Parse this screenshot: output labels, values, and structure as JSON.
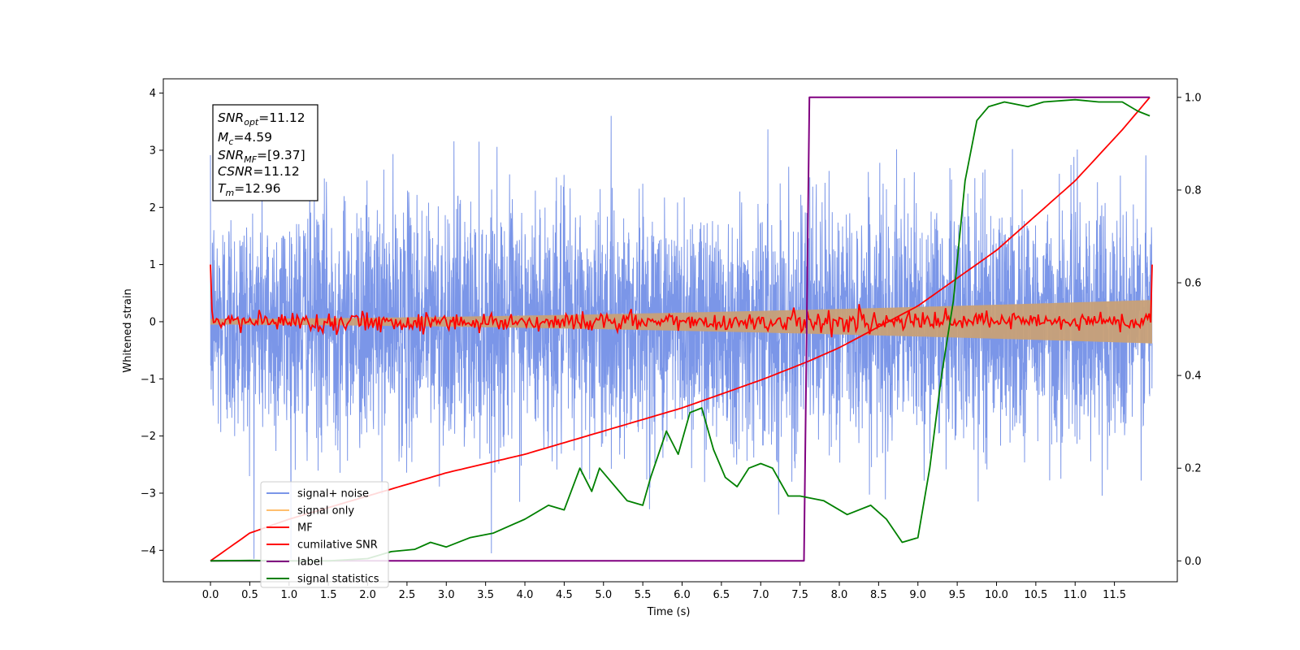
{
  "chart_data": {
    "type": "line",
    "xlabel": "Time (s)",
    "ylabel": "Whitened strain",
    "xlim": [
      -0.6,
      12.3
    ],
    "ylim": [
      -4.55,
      4.25
    ],
    "y2lim": [
      -0.045,
      1.04
    ],
    "x_ticks": [
      "0.0",
      "0.5",
      "1.0",
      "1.5",
      "2.0",
      "2.5",
      "3.0",
      "3.5",
      "4.0",
      "4.5",
      "5.0",
      "5.5",
      "6.0",
      "6.5",
      "7.0",
      "7.5",
      "8.0",
      "8.5",
      "9.0",
      "9.5",
      "10.0",
      "10.5",
      "11.0",
      "11.5"
    ],
    "y_ticks": [
      "4",
      "3",
      "2",
      "1",
      "0",
      "−1",
      "−2",
      "−3",
      "−4"
    ],
    "y2_ticks": [
      "1.0",
      "0.8",
      "0.6",
      "0.4",
      "0.2",
      "0.0"
    ],
    "info_box": {
      "snr_opt": {
        "base": "SNR",
        "sub": "opt",
        "value": "=11.12"
      },
      "mc": {
        "base": "M",
        "sub": "c",
        "value": "=4.59"
      },
      "snr_mf": {
        "base": "SNR",
        "sub": "MF",
        "value": "=[9.37]"
      },
      "csnr": {
        "base": "CSNR",
        "sub": "",
        "value": "=11.12"
      },
      "tm": {
        "base": "T",
        "sub": "m",
        "value": "=12.96"
      }
    },
    "legend": {
      "placement": "lower-left",
      "entries": [
        {
          "key": "signal_noise",
          "label": "signal+ noise",
          "color": "#7b96e8"
        },
        {
          "key": "signal_only",
          "label": "signal only",
          "color": "#ffbf6e"
        },
        {
          "key": "mf",
          "label": "MF",
          "color": "#ff0000"
        },
        {
          "key": "cum_snr",
          "label": "cumilative SNR",
          "color": "#ff0000"
        },
        {
          "key": "label",
          "label": "label",
          "color": "#800080"
        },
        {
          "key": "signal_stats",
          "label": "signal statistics",
          "color": "#008000"
        }
      ]
    },
    "series": [
      {
        "key": "signal_noise",
        "axis": "left",
        "description_range": [
          -4.15,
          3.85
        ],
        "color": "#7b96e8"
      },
      {
        "key": "signal_only",
        "axis": "left",
        "envelope_start": 0.05,
        "envelope_end": 0.38,
        "color": "#c8a077"
      },
      {
        "key": "mf",
        "axis": "left",
        "color": "#ff0000"
      },
      {
        "key": "cum_snr",
        "axis": "right",
        "x": [
          0.0,
          0.5,
          1.0,
          2.0,
          3.0,
          4.0,
          5.0,
          6.0,
          7.0,
          7.6,
          8.0,
          9.0,
          10.0,
          11.0,
          11.6,
          11.95
        ],
        "y": [
          0.0,
          0.06,
          0.09,
          0.14,
          0.19,
          0.23,
          0.28,
          0.33,
          0.39,
          0.43,
          0.46,
          0.55,
          0.67,
          0.82,
          0.93,
          1.0
        ],
        "color": "#ff0000"
      },
      {
        "key": "label",
        "axis": "right",
        "x": [
          0.0,
          7.55,
          7.62,
          11.95
        ],
        "y": [
          0.0,
          0.0,
          1.0,
          1.0
        ],
        "color": "#800080"
      },
      {
        "key": "signal_stats",
        "axis": "right",
        "x": [
          0.0,
          0.5,
          1.0,
          1.5,
          2.0,
          2.3,
          2.6,
          2.8,
          3.0,
          3.3,
          3.6,
          4.0,
          4.3,
          4.5,
          4.7,
          4.85,
          4.95,
          5.1,
          5.3,
          5.5,
          5.6,
          5.8,
          5.95,
          6.1,
          6.25,
          6.4,
          6.55,
          6.7,
          6.85,
          7.0,
          7.15,
          7.35,
          7.5,
          7.8,
          8.1,
          8.4,
          8.6,
          8.8,
          9.0,
          9.15,
          9.3,
          9.45,
          9.6,
          9.75,
          9.9,
          10.1,
          10.4,
          10.6,
          11.0,
          11.3,
          11.6,
          11.8,
          11.95
        ],
        "y": [
          0.0,
          0.001,
          0.0,
          0.0,
          0.005,
          0.02,
          0.025,
          0.04,
          0.03,
          0.05,
          0.06,
          0.09,
          0.12,
          0.11,
          0.2,
          0.15,
          0.2,
          0.17,
          0.13,
          0.12,
          0.18,
          0.28,
          0.23,
          0.32,
          0.33,
          0.24,
          0.18,
          0.16,
          0.2,
          0.21,
          0.2,
          0.14,
          0.14,
          0.13,
          0.1,
          0.12,
          0.09,
          0.04,
          0.05,
          0.2,
          0.4,
          0.56,
          0.82,
          0.95,
          0.98,
          0.99,
          0.98,
          0.99,
          0.995,
          0.99,
          0.99,
          0.97,
          0.96
        ],
        "color": "#008000"
      }
    ]
  }
}
